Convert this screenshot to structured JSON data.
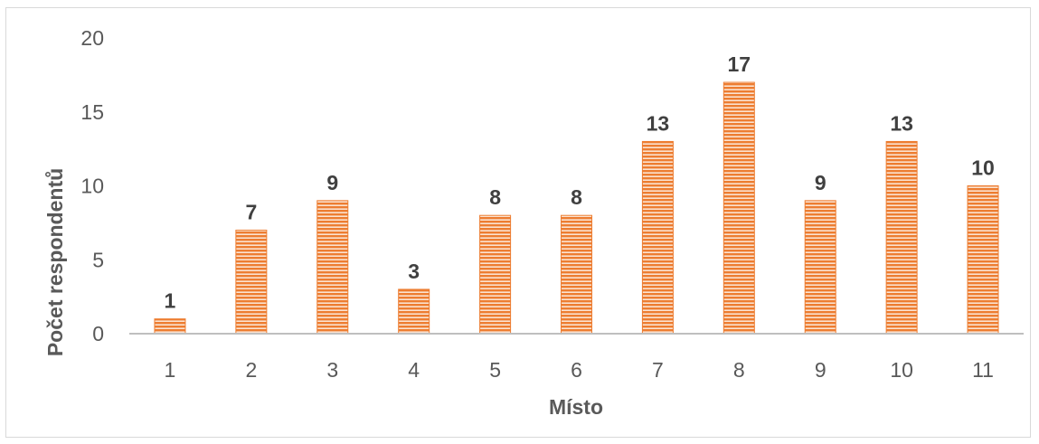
{
  "chart_data": {
    "type": "bar",
    "categories": [
      "1",
      "2",
      "3",
      "4",
      "5",
      "6",
      "7",
      "8",
      "9",
      "10",
      "11"
    ],
    "values": [
      1,
      7,
      9,
      3,
      8,
      8,
      13,
      17,
      9,
      13,
      10
    ],
    "title": "",
    "xlabel": "Místo",
    "ylabel": "Počet respondentů",
    "ylim": [
      0,
      20
    ],
    "yticks": [
      0,
      5,
      10,
      15,
      20
    ],
    "grid": false,
    "legend": "none",
    "bar_color": "#ed7d31",
    "bar_pattern": "horizontal-stripes",
    "data_labels": true
  }
}
